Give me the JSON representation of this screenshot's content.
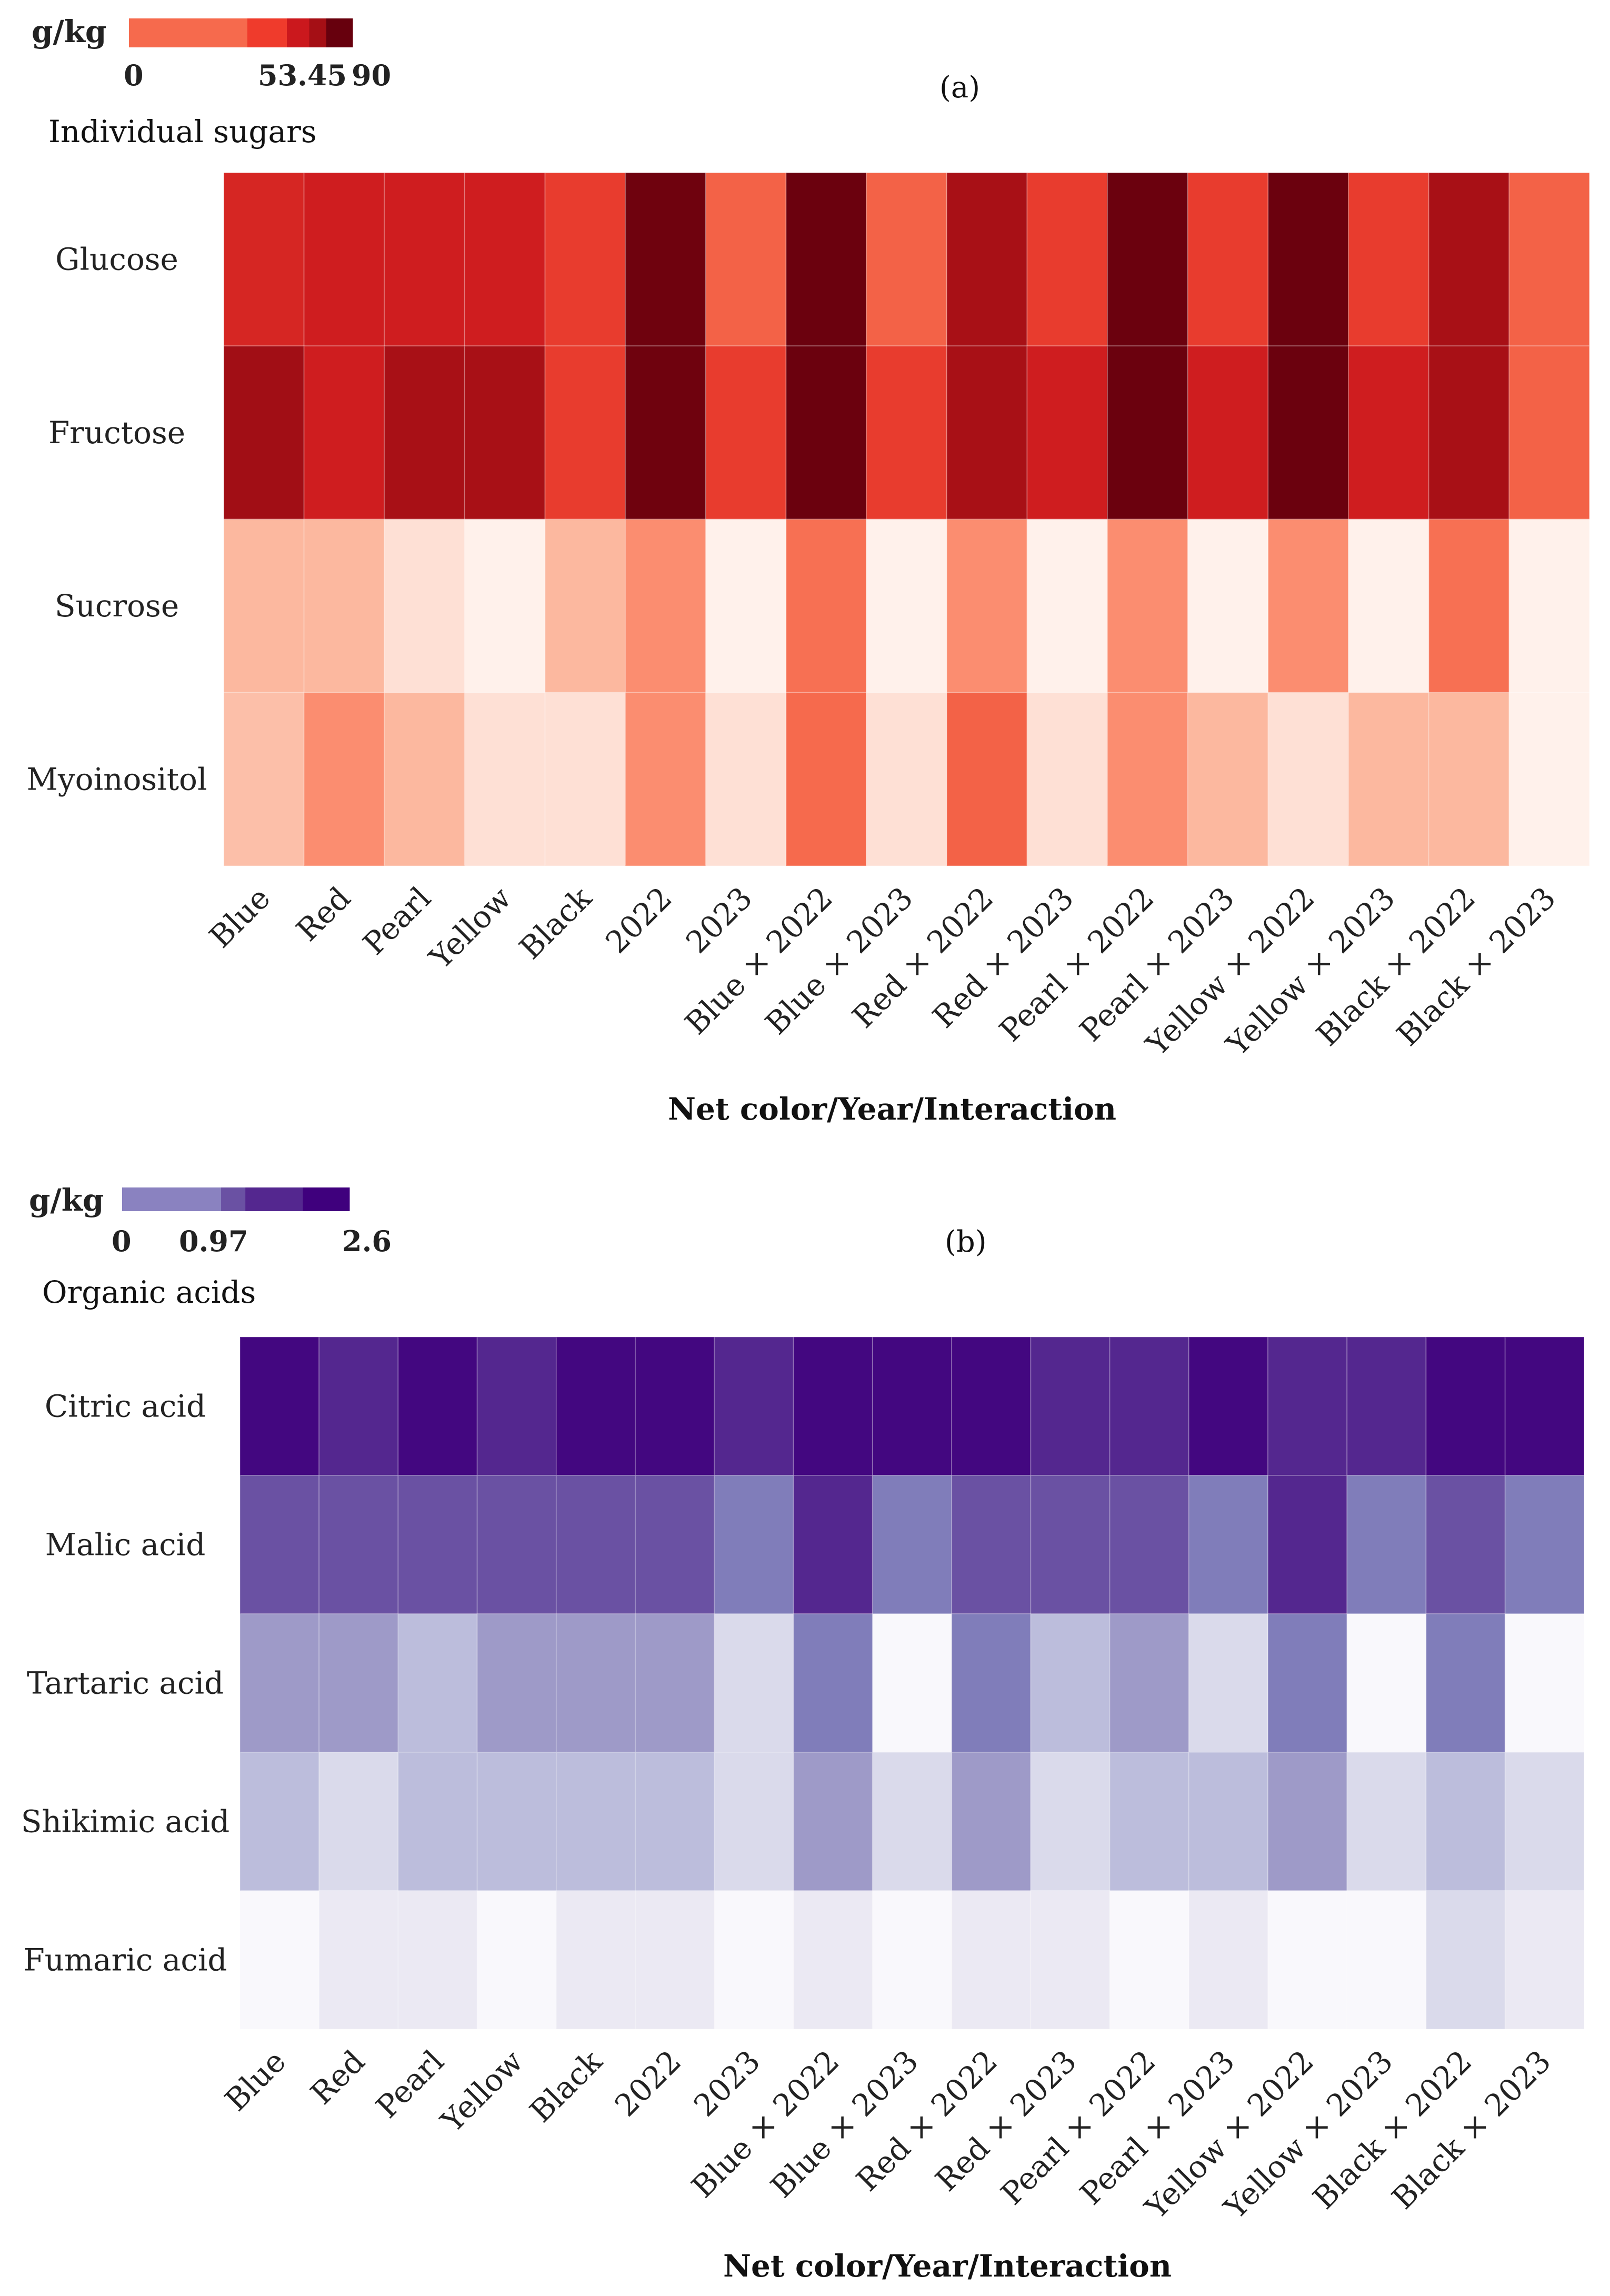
{
  "chart_data": [
    {
      "panel_label": "(a)",
      "type": "heatmap",
      "title": "Individual sugars",
      "legend": {
        "unit": "g/kg",
        "ticks": [
          "0",
          "53.45",
          "90"
        ],
        "range": [
          0,
          90
        ],
        "colors": [
          "#f66a4d",
          "#ef3b2c",
          "#cb181d",
          "#a50f15",
          "#67000d"
        ]
      },
      "xlabel": "Net color/Year/Interaction",
      "columns": [
        "Blue",
        "Red",
        "Pearl",
        "Yellow",
        "Black",
        "2022",
        "2023",
        "Blue × 2022",
        "Blue × 2023",
        "Red × 2022",
        "Red × 2023",
        "Pearl × 2022",
        "Pearl × 2023",
        "Yellow × 2022",
        "Yellow × 2023",
        "Black × 2022",
        "Black × 2023"
      ],
      "rows": [
        {
          "name": "Glucose",
          "values": [
            60,
            62,
            62,
            62,
            55,
            88,
            46,
            89,
            46,
            73,
            55,
            89,
            55,
            89,
            55,
            73,
            46
          ]
        },
        {
          "name": "Fructose",
          "values": [
            75,
            62,
            73,
            73,
            55,
            88,
            55,
            89,
            55,
            73,
            62,
            89,
            62,
            89,
            62,
            73,
            46
          ]
        },
        {
          "name": "Sucrose",
          "values": [
            22,
            22,
            10,
            2,
            22,
            32,
            2,
            42,
            2,
            32,
            2,
            32,
            2,
            32,
            2,
            42,
            2
          ]
        },
        {
          "name": "Myoinositol",
          "values": [
            20,
            32,
            22,
            10,
            10,
            32,
            10,
            44,
            10,
            46,
            10,
            32,
            22,
            10,
            22,
            22,
            2
          ]
        }
      ],
      "cmap": [
        {
          "v": 0,
          "color": "#fff5f0"
        },
        {
          "v": 12,
          "color": "#fedccf"
        },
        {
          "v": 22,
          "color": "#fcb89f"
        },
        {
          "v": 32,
          "color": "#fb8d70"
        },
        {
          "v": 44,
          "color": "#f66a4d"
        },
        {
          "v": 55,
          "color": "#e83c2e"
        },
        {
          "v": 63,
          "color": "#cb181d"
        },
        {
          "v": 74,
          "color": "#a50f15"
        },
        {
          "v": 90,
          "color": "#67000d"
        }
      ]
    },
    {
      "panel_label": "(b)",
      "type": "heatmap",
      "title": "Organic acids",
      "legend": {
        "unit": "g/kg",
        "ticks": [
          "0",
          "0.97",
          "2.6"
        ],
        "range": [
          0,
          2.6
        ],
        "colors": [
          "#8a82c0",
          "#6a51a3",
          "#54278f",
          "#3f007d"
        ]
      },
      "xlabel": "Net color/Year/Interaction",
      "columns": [
        "Blue",
        "Red",
        "Pearl",
        "Yellow",
        "Black",
        "2022",
        "2023",
        "Blue × 2022",
        "Blue × 2023",
        "Red × 2022",
        "Red × 2023",
        "Pearl × 2022",
        "Pearl × 2023",
        "Yellow × 2022",
        "Yellow × 2023",
        "Black × 2022",
        "Black × 2023"
      ],
      "rows": [
        {
          "name": "Citric acid",
          "values": [
            2.5,
            2.05,
            2.5,
            2.05,
            2.5,
            2.5,
            2.05,
            2.5,
            2.5,
            2.5,
            2.05,
            2.05,
            2.5,
            2.05,
            2.05,
            2.5,
            2.5
          ]
        },
        {
          "name": "Malic acid",
          "values": [
            1.55,
            1.55,
            1.55,
            1.55,
            1.55,
            1.55,
            1.2,
            2.05,
            1.2,
            1.55,
            1.55,
            1.55,
            1.2,
            2.05,
            1.2,
            1.55,
            1.2
          ]
        },
        {
          "name": "Tartaric acid",
          "values": [
            0.9,
            0.9,
            0.6,
            0.9,
            0.9,
            0.9,
            0.4,
            1.2,
            0.03,
            1.2,
            0.6,
            0.9,
            0.4,
            1.2,
            0.03,
            1.2,
            0.03
          ]
        },
        {
          "name": "Shikimic acid",
          "values": [
            0.6,
            0.4,
            0.6,
            0.6,
            0.6,
            0.6,
            0.4,
            0.9,
            0.4,
            0.9,
            0.4,
            0.6,
            0.6,
            0.9,
            0.4,
            0.6,
            0.4
          ]
        },
        {
          "name": "Fumaric acid",
          "values": [
            0.03,
            0.2,
            0.2,
            0.03,
            0.2,
            0.2,
            0.03,
            0.2,
            0.03,
            0.2,
            0.2,
            0.03,
            0.2,
            0.03,
            0.03,
            0.4,
            0.2
          ]
        }
      ],
      "cmap": [
        {
          "v": 0,
          "color": "#fcfbfd"
        },
        {
          "v": 0.2,
          "color": "#ebe9f3"
        },
        {
          "v": 0.4,
          "color": "#dadaeb"
        },
        {
          "v": 0.6,
          "color": "#bcbddc"
        },
        {
          "v": 0.9,
          "color": "#9e9ac8"
        },
        {
          "v": 1.2,
          "color": "#807dba"
        },
        {
          "v": 1.55,
          "color": "#6a51a3"
        },
        {
          "v": 2.05,
          "color": "#54278f"
        },
        {
          "v": 2.6,
          "color": "#3f007d"
        }
      ]
    }
  ]
}
